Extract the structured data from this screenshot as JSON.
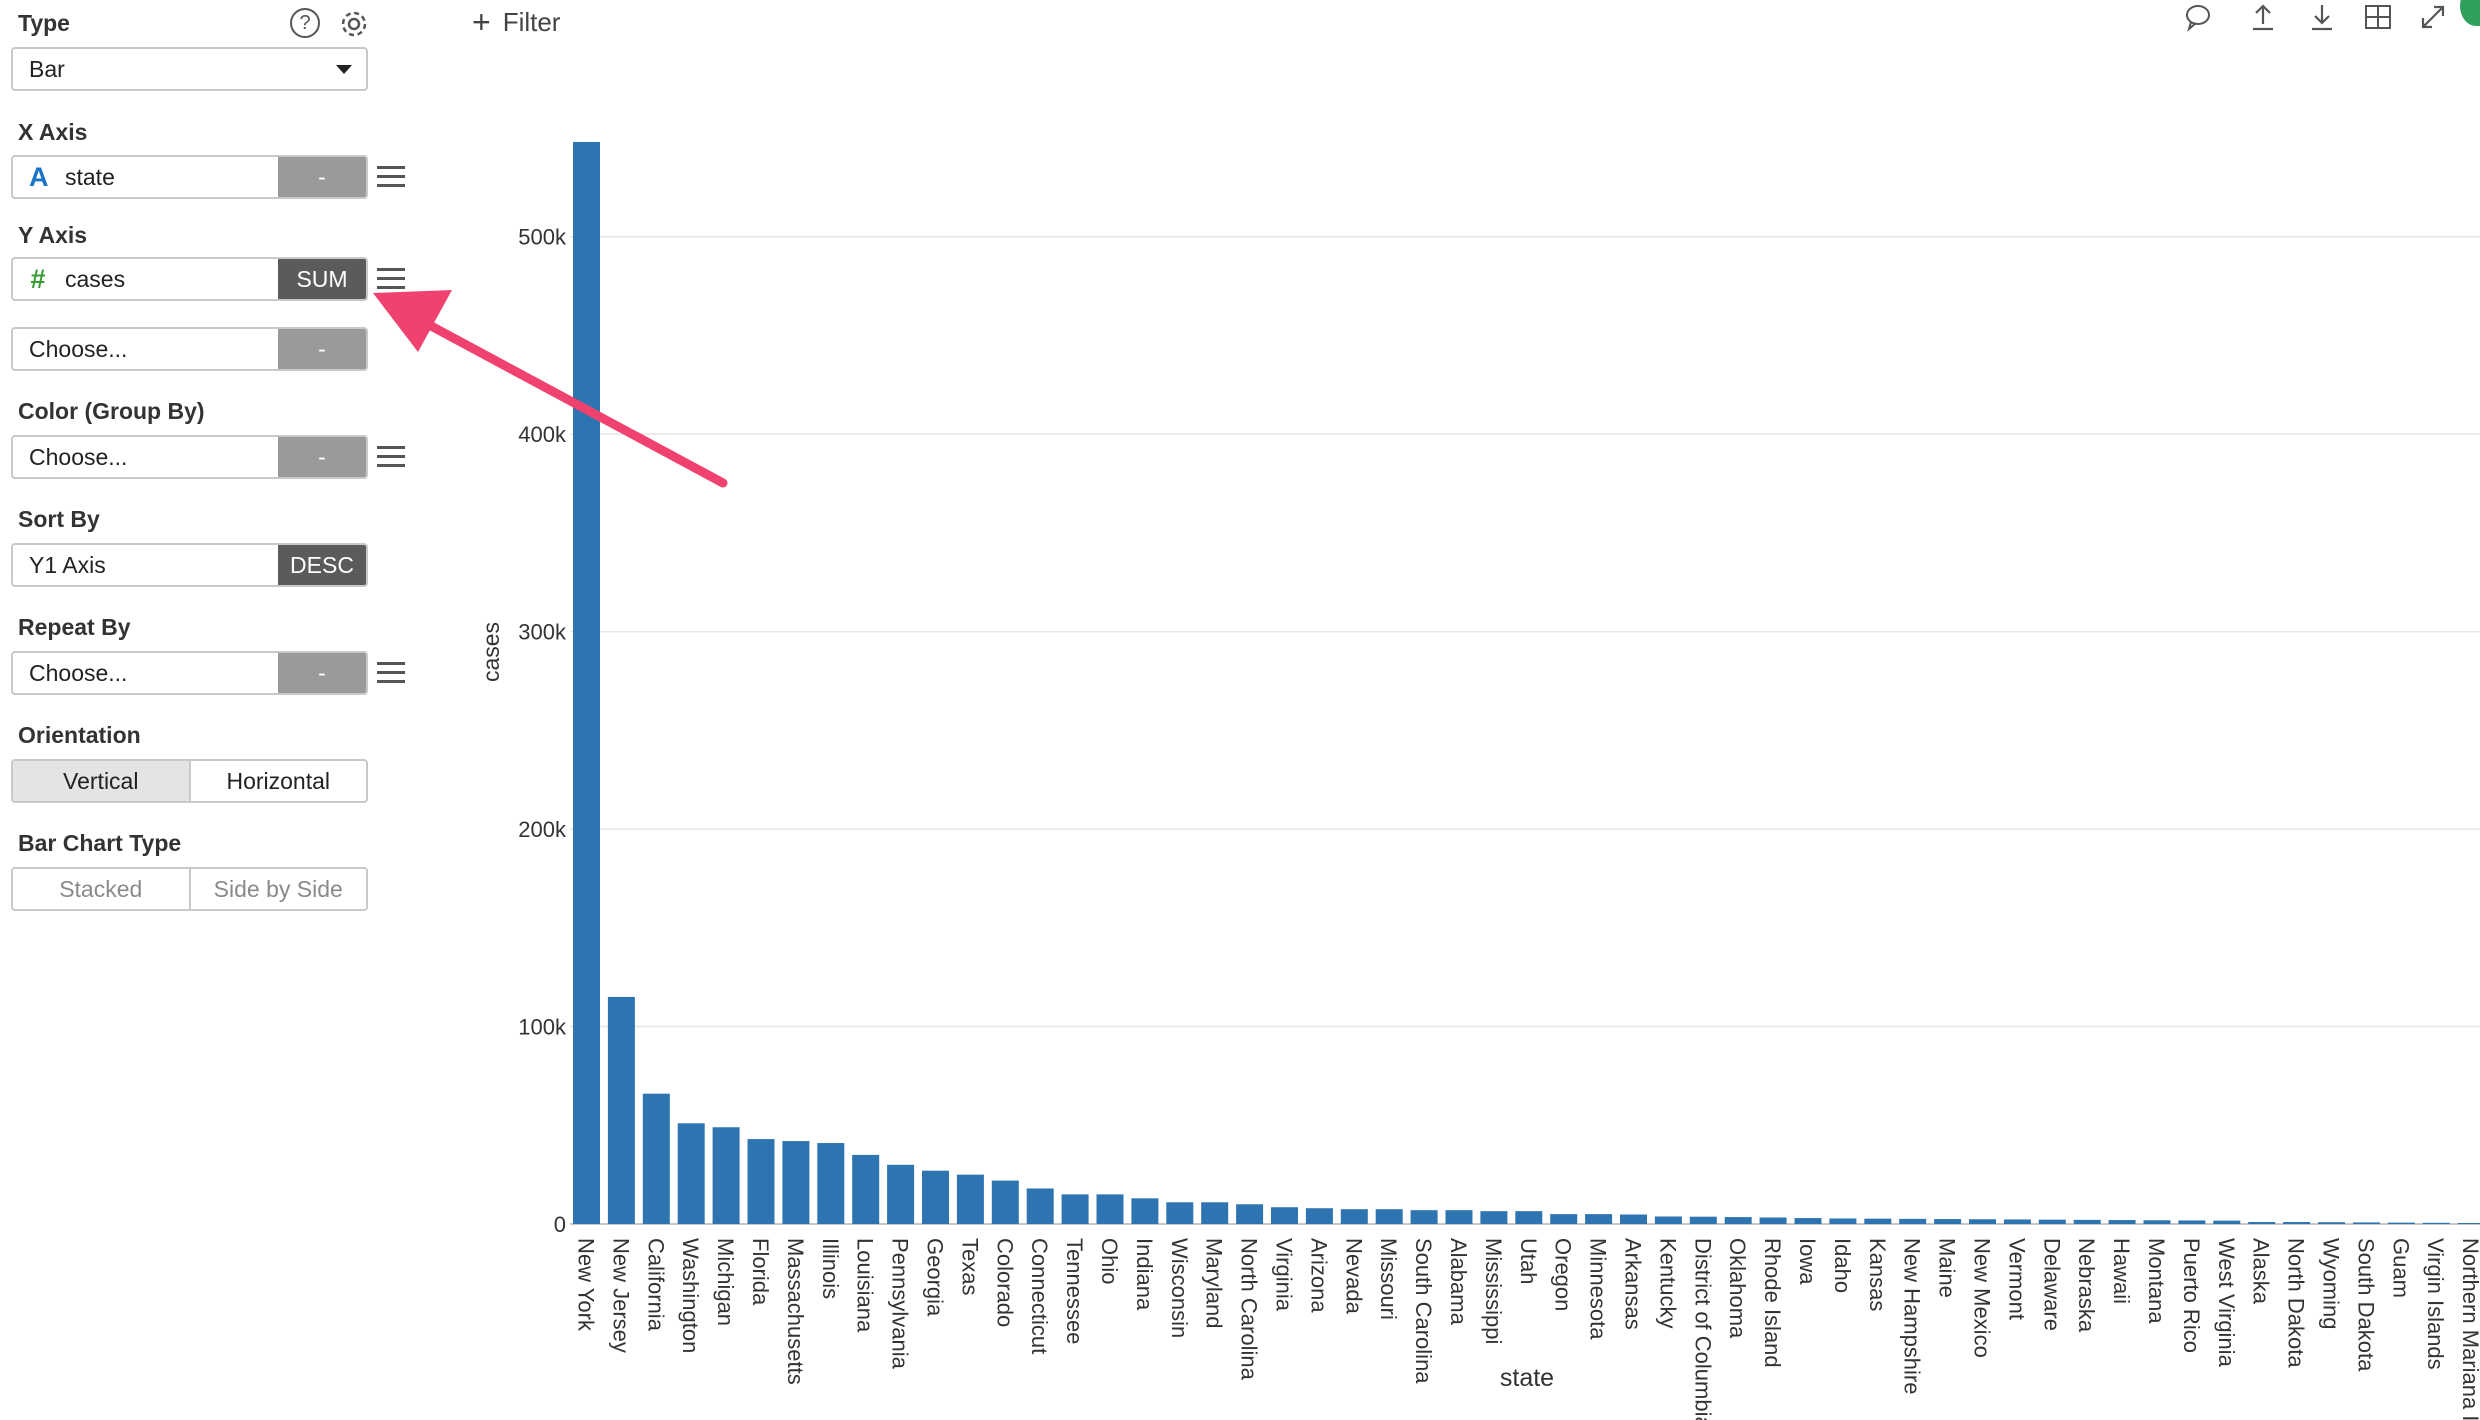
{
  "sidebar": {
    "type_label": "Type",
    "type_value": "Bar",
    "x_axis_label": "X Axis",
    "x_field": "state",
    "x_field_icon": "A",
    "x_agg": "-",
    "y_axis_label": "Y Axis",
    "y_field": "cases",
    "y_field_icon": "#",
    "y_agg": "SUM",
    "y2_placeholder": "Choose...",
    "y2_agg": "-",
    "color_label": "Color (Group By)",
    "color_placeholder": "Choose...",
    "color_agg": "-",
    "sort_label": "Sort By",
    "sort_value": "Y1 Axis",
    "sort_order": "DESC",
    "repeat_label": "Repeat By",
    "repeat_placeholder": "Choose...",
    "repeat_agg": "-",
    "orientation_label": "Orientation",
    "orientation_options": [
      "Vertical",
      "Horizontal"
    ],
    "bar_type_label": "Bar Chart Type",
    "bar_type_options": [
      "Stacked",
      "Side by Side"
    ]
  },
  "toolbar": {
    "filter_label": "Filter",
    "icons": [
      "comment-icon",
      "upload-icon",
      "download-icon",
      "grid-icon",
      "expand-icon"
    ]
  },
  "colors": {
    "bar": "#2e74b0",
    "arrow": "#f0426e",
    "x_icon": "#1a73c7",
    "y_icon": "#3a9b35"
  },
  "chart_data": {
    "type": "bar",
    "xlabel": "state",
    "ylabel": "cases",
    "ylim": [
      0,
      550000
    ],
    "yticks": [
      0,
      100000,
      200000,
      300000,
      400000,
      500000
    ],
    "ytick_labels": [
      "0",
      "100k",
      "200k",
      "300k",
      "400k",
      "500k"
    ],
    "grid": true,
    "categories": [
      "New York",
      "New Jersey",
      "California",
      "Washington",
      "Michigan",
      "Florida",
      "Massachusetts",
      "Illinois",
      "Louisiana",
      "Pennsylvania",
      "Georgia",
      "Texas",
      "Colorado",
      "Connecticut",
      "Tennessee",
      "Ohio",
      "Indiana",
      "Wisconsin",
      "Maryland",
      "North Carolina",
      "Virginia",
      "Arizona",
      "Nevada",
      "Missouri",
      "South Carolina",
      "Alabama",
      "Mississippi",
      "Utah",
      "Oregon",
      "Minnesota",
      "Arkansas",
      "Kentucky",
      "District of Columbia",
      "Oklahoma",
      "Rhode Island",
      "Iowa",
      "Idaho",
      "Kansas",
      "New Hampshire",
      "Maine",
      "New Mexico",
      "Vermont",
      "Delaware",
      "Nebraska",
      "Hawaii",
      "Montana",
      "Puerto Rico",
      "West Virginia",
      "Alaska",
      "North Dakota",
      "Wyoming",
      "South Dakota",
      "Guam",
      "Virgin Islands",
      "Northern Mariana Islands"
    ],
    "values": [
      548000,
      115000,
      66000,
      51000,
      49000,
      43000,
      42000,
      41000,
      35000,
      30000,
      27000,
      25000,
      22000,
      18000,
      15000,
      15000,
      13000,
      11000,
      11000,
      10000,
      8500,
      8000,
      7500,
      7500,
      7000,
      7000,
      6500,
      6500,
      5000,
      5000,
      4800,
      3800,
      3700,
      3500,
      3300,
      3000,
      2800,
      2700,
      2600,
      2500,
      2400,
      2300,
      2200,
      2100,
      2000,
      1900,
      1800,
      1700,
      1000,
      1000,
      900,
      800,
      700,
      600,
      500
    ]
  }
}
